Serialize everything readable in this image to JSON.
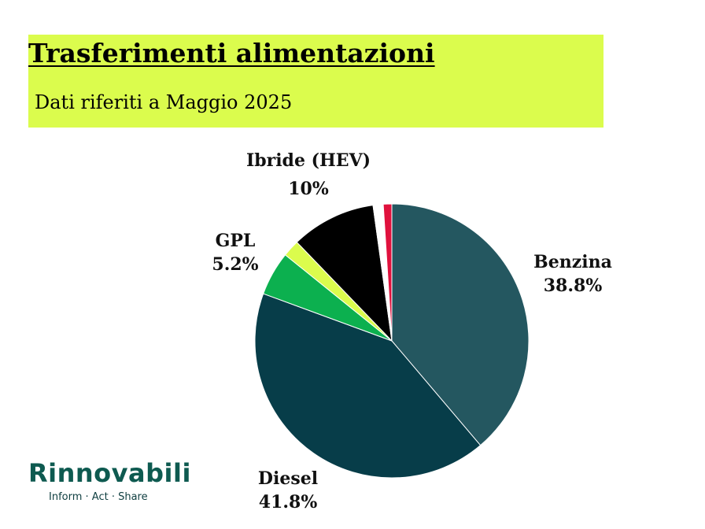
{
  "header": {
    "title": "Trasferimenti alimentazioni",
    "subtitle": "Dati riferiti a Maggio 2025"
  },
  "chart_data": {
    "type": "pie",
    "slices": [
      {
        "label": "Benzina",
        "value": 38.8,
        "display": "38.8%",
        "color": "#245760"
      },
      {
        "label": "Diesel",
        "value": 41.8,
        "display": "41.8%",
        "color": "#073d49"
      },
      {
        "label": "GPL",
        "value": 5.2,
        "display": "5.2%",
        "color": "#0cb04f"
      },
      {
        "label": "",
        "value": 2.0,
        "display": "",
        "color": "#dbfc4d"
      },
      {
        "label": "Ibride (HEV)",
        "value": 10,
        "display": "10%",
        "color": "#000000"
      },
      {
        "label": "",
        "value": 1.2,
        "display": "",
        "color": "#ffffff"
      },
      {
        "label": "",
        "value": 1.0,
        "display": "",
        "color": "#e0113d"
      }
    ]
  },
  "logo": {
    "wordmark": "Rinnovabili",
    "tagline": "Inform · Act · Share"
  }
}
